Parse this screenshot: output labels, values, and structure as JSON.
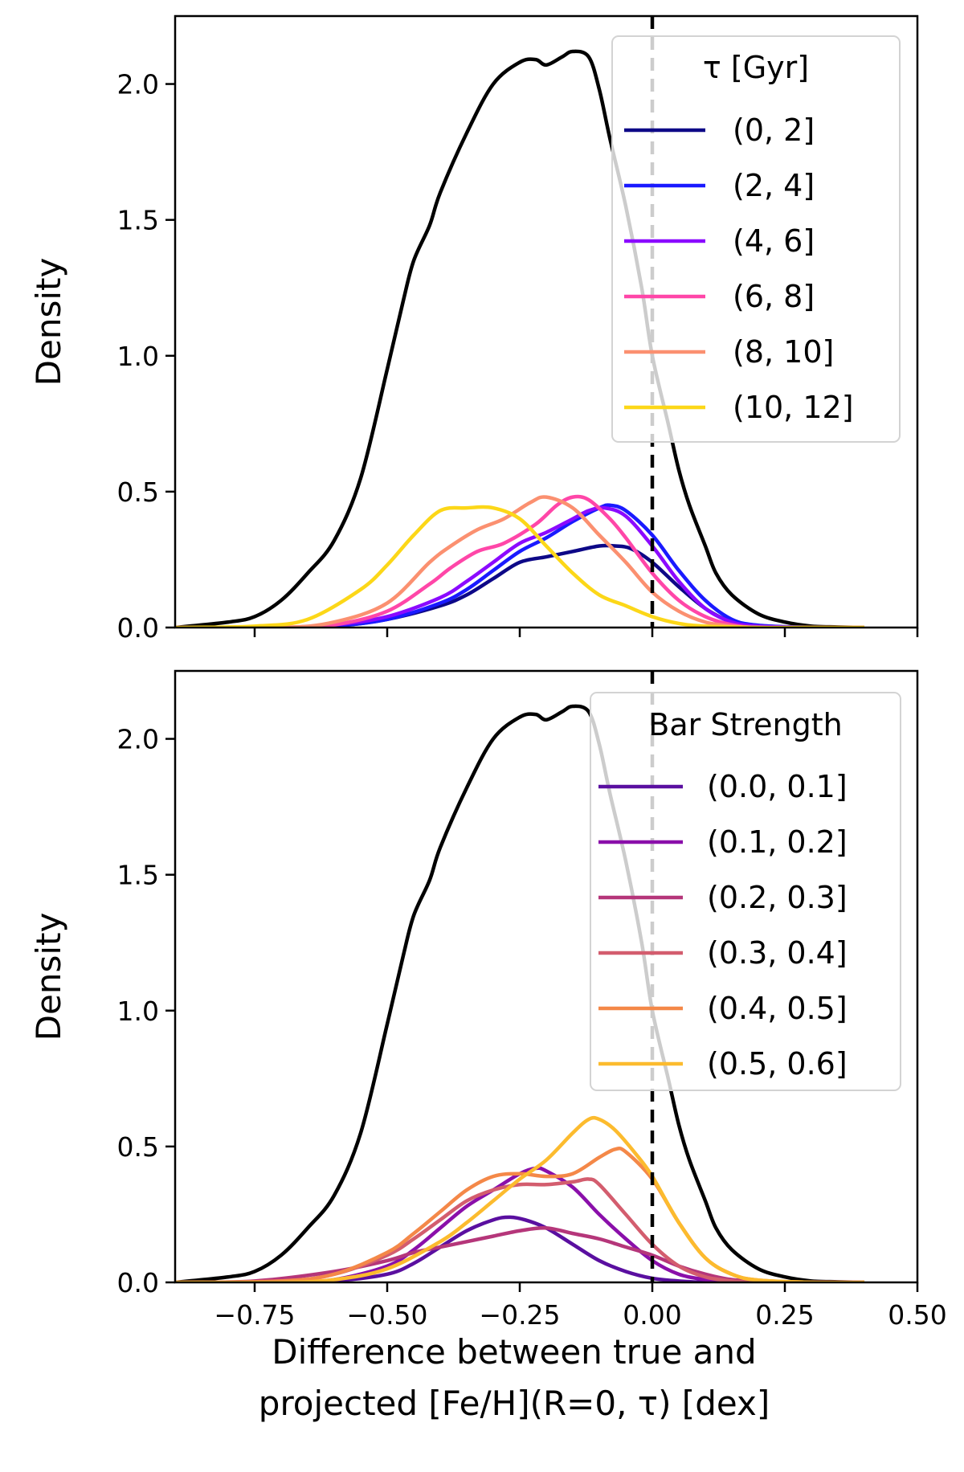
{
  "chart_data": [
    {
      "type": "line",
      "panel": "top",
      "ylabel": "Density",
      "xlabel": "",
      "xlim": [
        -0.9,
        0.5
      ],
      "ylim": [
        0,
        2.25
      ],
      "yticks": [
        0.0,
        0.5,
        1.0,
        1.5,
        2.0
      ],
      "ytick_labels": [
        "0.0",
        "0.5",
        "1.0",
        "1.5",
        "2.0"
      ],
      "xticks": [
        -0.75,
        -0.5,
        -0.25,
        0.0,
        0.25,
        0.5
      ],
      "vline_x": 0.0,
      "legend_title": "τ [Gyr]",
      "legend_position": "top-right",
      "total": {
        "name": "all",
        "color": "#000000",
        "x": [
          -0.9,
          -0.8,
          -0.75,
          -0.7,
          -0.65,
          -0.6,
          -0.55,
          -0.5,
          -0.47,
          -0.45,
          -0.42,
          -0.4,
          -0.35,
          -0.3,
          -0.25,
          -0.22,
          -0.2,
          -0.17,
          -0.15,
          -0.12,
          -0.1,
          -0.08,
          -0.05,
          -0.02,
          0.0,
          0.03,
          0.05,
          0.07,
          0.1,
          0.12,
          0.15,
          0.2,
          0.25,
          0.3,
          0.35,
          0.4
        ],
        "y": [
          0.0,
          0.02,
          0.04,
          0.1,
          0.2,
          0.32,
          0.55,
          0.95,
          1.2,
          1.35,
          1.48,
          1.6,
          1.82,
          2.0,
          2.08,
          2.09,
          2.07,
          2.1,
          2.12,
          2.1,
          1.98,
          1.8,
          1.55,
          1.25,
          1.0,
          0.75,
          0.58,
          0.45,
          0.3,
          0.2,
          0.12,
          0.05,
          0.02,
          0.005,
          0.002,
          0.0
        ]
      },
      "series": [
        {
          "name": "(0, 2]",
          "color": "#0d0887",
          "x": [
            -0.9,
            -0.7,
            -0.6,
            -0.5,
            -0.4,
            -0.35,
            -0.3,
            -0.25,
            -0.2,
            -0.15,
            -0.1,
            -0.07,
            -0.04,
            0.0,
            0.05,
            0.1,
            0.15,
            0.2,
            0.3,
            0.4
          ],
          "y": [
            0.0,
            0.0,
            0.005,
            0.03,
            0.08,
            0.12,
            0.18,
            0.24,
            0.26,
            0.28,
            0.3,
            0.3,
            0.29,
            0.24,
            0.15,
            0.07,
            0.02,
            0.005,
            0.0,
            0.0
          ]
        },
        {
          "name": "(2, 4]",
          "color": "#1a1aff",
          "x": [
            -0.9,
            -0.7,
            -0.6,
            -0.5,
            -0.4,
            -0.35,
            -0.3,
            -0.25,
            -0.2,
            -0.15,
            -0.1,
            -0.08,
            -0.05,
            0.0,
            0.05,
            0.1,
            0.15,
            0.2,
            0.3,
            0.4
          ],
          "y": [
            0.0,
            0.0,
            0.005,
            0.03,
            0.09,
            0.14,
            0.21,
            0.28,
            0.33,
            0.39,
            0.44,
            0.45,
            0.43,
            0.34,
            0.21,
            0.1,
            0.03,
            0.008,
            0.0,
            0.0
          ]
        },
        {
          "name": "(4, 6]",
          "color": "#8b0aff",
          "x": [
            -0.9,
            -0.7,
            -0.6,
            -0.5,
            -0.4,
            -0.35,
            -0.3,
            -0.25,
            -0.2,
            -0.15,
            -0.12,
            -0.09,
            -0.05,
            0.0,
            0.05,
            0.1,
            0.15,
            0.2,
            0.3,
            0.4
          ],
          "y": [
            0.0,
            0.0,
            0.01,
            0.04,
            0.11,
            0.17,
            0.24,
            0.31,
            0.35,
            0.4,
            0.43,
            0.44,
            0.41,
            0.3,
            0.17,
            0.07,
            0.02,
            0.005,
            0.0,
            0.0
          ]
        },
        {
          "name": "(6, 8]",
          "color": "#ff46a8",
          "x": [
            -0.9,
            -0.7,
            -0.6,
            -0.5,
            -0.42,
            -0.38,
            -0.33,
            -0.28,
            -0.22,
            -0.18,
            -0.15,
            -0.12,
            -0.08,
            -0.05,
            0.0,
            0.05,
            0.1,
            0.15,
            0.2,
            0.3,
            0.4
          ],
          "y": [
            0.0,
            0.0,
            0.01,
            0.06,
            0.16,
            0.22,
            0.28,
            0.31,
            0.38,
            0.45,
            0.48,
            0.47,
            0.4,
            0.33,
            0.2,
            0.1,
            0.04,
            0.01,
            0.0,
            0.0,
            0.0
          ]
        },
        {
          "name": "(8, 10]",
          "color": "#fb9070",
          "x": [
            -0.9,
            -0.7,
            -0.6,
            -0.5,
            -0.42,
            -0.38,
            -0.33,
            -0.28,
            -0.23,
            -0.2,
            -0.15,
            -0.1,
            -0.05,
            0.0,
            0.05,
            0.1,
            0.15,
            0.2,
            0.3,
            0.4
          ],
          "y": [
            0.0,
            0.0,
            0.02,
            0.09,
            0.24,
            0.3,
            0.36,
            0.4,
            0.46,
            0.48,
            0.44,
            0.34,
            0.24,
            0.13,
            0.06,
            0.02,
            0.005,
            0.0,
            0.0,
            0.0
          ]
        },
        {
          "name": "(10, 12]",
          "color": "#fcd718",
          "x": [
            -0.9,
            -0.75,
            -0.65,
            -0.55,
            -0.5,
            -0.45,
            -0.4,
            -0.35,
            -0.3,
            -0.25,
            -0.2,
            -0.15,
            -0.1,
            -0.05,
            0.0,
            0.05,
            0.1,
            0.2,
            0.3,
            0.4
          ],
          "y": [
            0.0,
            0.005,
            0.03,
            0.14,
            0.23,
            0.34,
            0.43,
            0.44,
            0.44,
            0.4,
            0.3,
            0.2,
            0.12,
            0.08,
            0.04,
            0.015,
            0.005,
            0.0,
            0.0,
            0.0
          ]
        }
      ]
    },
    {
      "type": "line",
      "panel": "bottom",
      "ylabel": "Density",
      "xlabel": "Difference between true and projected [Fe/H](R=0, τ) [dex]",
      "xlabel_lines": [
        "Difference between true and",
        "projected [Fe/H](R=0, τ) [dex]"
      ],
      "xlim": [
        -0.9,
        0.5
      ],
      "ylim": [
        0,
        2.25
      ],
      "yticks": [
        0.0,
        0.5,
        1.0,
        1.5,
        2.0
      ],
      "ytick_labels": [
        "0.0",
        "0.5",
        "1.0",
        "1.5",
        "2.0"
      ],
      "xticks": [
        -0.75,
        -0.5,
        -0.25,
        0.0,
        0.25,
        0.5
      ],
      "xtick_labels": [
        "−0.75",
        "−0.50",
        "−0.25",
        "0.00",
        "0.25",
        "0.50"
      ],
      "vline_x": 0.0,
      "legend_title": "Bar Strength",
      "legend_position": "top-right",
      "total": {
        "name": "all",
        "color": "#000000",
        "x": [
          -0.9,
          -0.8,
          -0.75,
          -0.7,
          -0.65,
          -0.6,
          -0.55,
          -0.5,
          -0.47,
          -0.45,
          -0.42,
          -0.4,
          -0.35,
          -0.3,
          -0.25,
          -0.22,
          -0.2,
          -0.17,
          -0.15,
          -0.12,
          -0.1,
          -0.08,
          -0.05,
          -0.02,
          0.0,
          0.03,
          0.05,
          0.07,
          0.1,
          0.12,
          0.15,
          0.2,
          0.25,
          0.3,
          0.35,
          0.4
        ],
        "y": [
          0.0,
          0.02,
          0.04,
          0.1,
          0.2,
          0.32,
          0.55,
          0.95,
          1.2,
          1.35,
          1.48,
          1.6,
          1.82,
          2.0,
          2.08,
          2.09,
          2.07,
          2.1,
          2.12,
          2.1,
          1.98,
          1.8,
          1.55,
          1.25,
          1.0,
          0.75,
          0.58,
          0.45,
          0.3,
          0.2,
          0.12,
          0.05,
          0.02,
          0.005,
          0.002,
          0.0
        ]
      },
      "series": [
        {
          "name": "(0.0, 0.1]",
          "color": "#5a0fa0",
          "x": [
            -0.9,
            -0.7,
            -0.6,
            -0.5,
            -0.45,
            -0.4,
            -0.35,
            -0.3,
            -0.27,
            -0.24,
            -0.2,
            -0.15,
            -0.1,
            -0.05,
            0.0,
            0.05,
            0.1,
            0.2,
            0.3,
            0.4
          ],
          "y": [
            0.0,
            0.0,
            0.005,
            0.03,
            0.07,
            0.13,
            0.19,
            0.23,
            0.24,
            0.23,
            0.2,
            0.14,
            0.08,
            0.04,
            0.015,
            0.005,
            0.0,
            0.0,
            0.0,
            0.0
          ]
        },
        {
          "name": "(0.1, 0.2]",
          "color": "#8a0faa",
          "x": [
            -0.9,
            -0.7,
            -0.6,
            -0.5,
            -0.45,
            -0.4,
            -0.35,
            -0.3,
            -0.25,
            -0.22,
            -0.2,
            -0.15,
            -0.1,
            -0.05,
            0.0,
            0.05,
            0.1,
            0.15,
            0.2,
            0.3,
            0.4
          ],
          "y": [
            0.0,
            0.0,
            0.01,
            0.06,
            0.12,
            0.2,
            0.28,
            0.34,
            0.4,
            0.42,
            0.41,
            0.35,
            0.25,
            0.16,
            0.08,
            0.03,
            0.01,
            0.0,
            0.0,
            0.0,
            0.0
          ]
        },
        {
          "name": "(0.2, 0.3]",
          "color": "#b5367a",
          "x": [
            -0.9,
            -0.75,
            -0.6,
            -0.5,
            -0.45,
            -0.4,
            -0.35,
            -0.3,
            -0.25,
            -0.2,
            -0.15,
            -0.1,
            -0.05,
            0.0,
            0.05,
            0.1,
            0.15,
            0.2,
            0.3,
            0.4
          ],
          "y": [
            0.0,
            0.005,
            0.04,
            0.08,
            0.11,
            0.13,
            0.15,
            0.17,
            0.19,
            0.2,
            0.18,
            0.16,
            0.13,
            0.1,
            0.06,
            0.03,
            0.01,
            0.005,
            0.0,
            0.0
          ]
        },
        {
          "name": "(0.3, 0.4]",
          "color": "#d35d6e",
          "x": [
            -0.9,
            -0.7,
            -0.6,
            -0.5,
            -0.45,
            -0.4,
            -0.35,
            -0.3,
            -0.25,
            -0.2,
            -0.15,
            -0.12,
            -0.1,
            -0.05,
            0.0,
            0.05,
            0.1,
            0.15,
            0.2,
            0.3,
            0.4
          ],
          "y": [
            0.0,
            0.005,
            0.03,
            0.1,
            0.16,
            0.23,
            0.3,
            0.34,
            0.36,
            0.36,
            0.37,
            0.38,
            0.36,
            0.25,
            0.14,
            0.06,
            0.02,
            0.005,
            0.0,
            0.0,
            0.0
          ]
        },
        {
          "name": "(0.4, 0.5]",
          "color": "#f48848",
          "x": [
            -0.9,
            -0.7,
            -0.6,
            -0.5,
            -0.45,
            -0.4,
            -0.35,
            -0.3,
            -0.25,
            -0.2,
            -0.15,
            -0.1,
            -0.07,
            -0.05,
            0.0,
            0.05,
            0.1,
            0.15,
            0.2,
            0.3,
            0.4
          ],
          "y": [
            0.0,
            0.005,
            0.03,
            0.11,
            0.18,
            0.26,
            0.34,
            0.39,
            0.4,
            0.39,
            0.4,
            0.46,
            0.49,
            0.48,
            0.38,
            0.22,
            0.09,
            0.03,
            0.008,
            0.0,
            0.0
          ]
        },
        {
          "name": "(0.5, 0.6]",
          "color": "#fcbb2e",
          "x": [
            -0.9,
            -0.7,
            -0.6,
            -0.5,
            -0.4,
            -0.35,
            -0.3,
            -0.25,
            -0.2,
            -0.15,
            -0.12,
            -0.1,
            -0.07,
            -0.03,
            0.0,
            0.05,
            0.1,
            0.15,
            0.2,
            0.3,
            0.4
          ],
          "y": [
            0.0,
            0.0,
            0.01,
            0.05,
            0.15,
            0.22,
            0.3,
            0.38,
            0.45,
            0.55,
            0.6,
            0.6,
            0.56,
            0.47,
            0.39,
            0.22,
            0.09,
            0.03,
            0.008,
            0.0,
            0.0
          ]
        }
      ]
    }
  ]
}
